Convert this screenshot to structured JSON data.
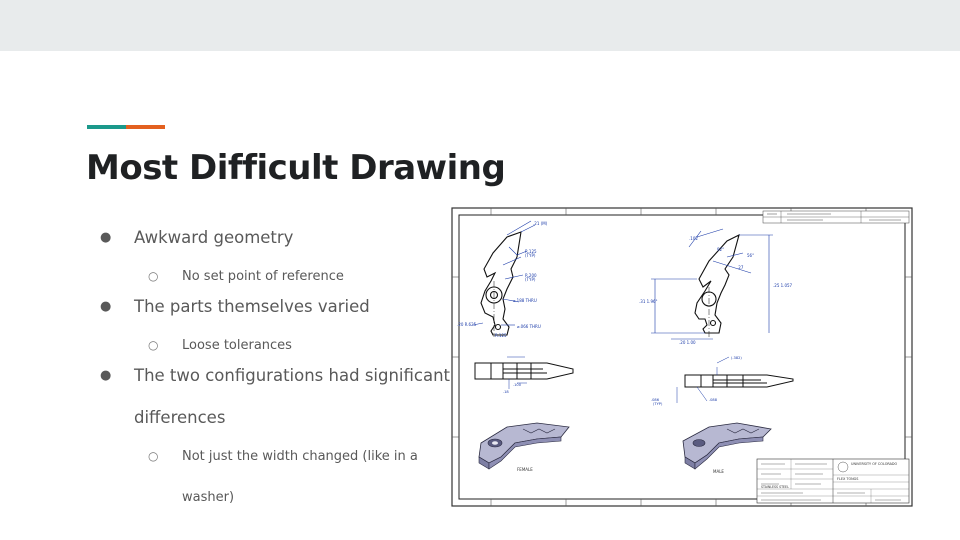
{
  "slide": {
    "title": "Most Difficult Drawing",
    "accent_colors": [
      "#1b998b",
      "#e3601f"
    ],
    "bullets": [
      {
        "level": 1,
        "text": "Awkward geometry"
      },
      {
        "level": 2,
        "text": "No set point of reference"
      },
      {
        "level": 1,
        "text": "The parts themselves varied"
      },
      {
        "level": 2,
        "text": "Loose tolerances"
      },
      {
        "level": 1,
        "text": "The two configurations had significant"
      },
      {
        "level": 1,
        "text": "differences",
        "continuation": true
      },
      {
        "level": 2,
        "text": "Not just the width changed (like in a"
      },
      {
        "level": 2,
        "text": "washer)",
        "continuation": true
      }
    ]
  },
  "drawing": {
    "type": "engineering drawing sheet",
    "view_labels": [
      "FEMALE",
      "MALE"
    ],
    "title_block_text": [
      "UNIVERSITY OF COLORADO",
      "FLEX TONGS",
      "STAINLESS STEEL"
    ]
  }
}
